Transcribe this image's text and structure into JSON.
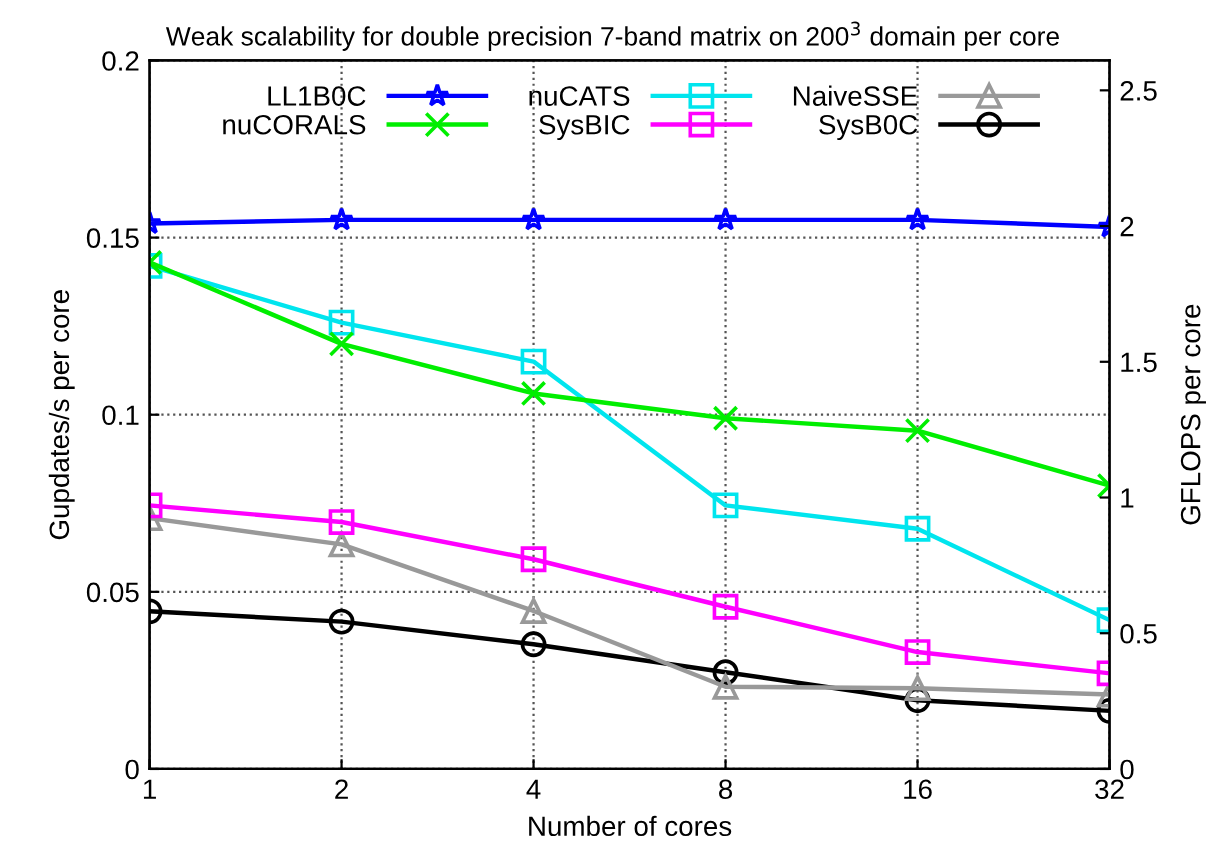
{
  "chart_data": {
    "type": "line",
    "title": "Weak scalability for double precision 7-band matrix on 200$^{3}$ domain per core",
    "xlabel": "Number of cores",
    "ylabel": "Gupdates/s per core",
    "y2label": "GFLOPS per core",
    "categories": [
      "1",
      "2",
      "4",
      "8",
      "16",
      "32"
    ],
    "series": [
      {
        "name": "LL1B0C",
        "color": "#0000ff",
        "marker": "star",
        "values": [
          0.154,
          0.155,
          0.155,
          0.155,
          0.155,
          0.153
        ]
      },
      {
        "name": "nuCORALS",
        "color": "#00ee00",
        "marker": "cross",
        "values": [
          0.143,
          0.12,
          0.106,
          0.099,
          0.0955,
          0.08
        ]
      },
      {
        "name": "nuCATS",
        "color": "#00e5ee",
        "marker": "square",
        "values": [
          0.142,
          0.126,
          0.115,
          0.0744,
          0.0678,
          0.042
        ]
      },
      {
        "name": "SysBIC",
        "color": "#ff00ff",
        "marker": "square",
        "values": [
          0.0744,
          0.0697,
          0.0592,
          0.0458,
          0.033,
          0.027
        ]
      },
      {
        "name": "NaiveSSE",
        "color": "#999999",
        "marker": "triangle",
        "values": [
          0.0708,
          0.0634,
          0.0446,
          0.0232,
          0.0228,
          0.021
        ]
      },
      {
        "name": "SysB0C",
        "color": "#000000",
        "marker": "circle",
        "values": [
          0.0445,
          0.0416,
          0.0352,
          0.0273,
          0.0194,
          0.0164
        ]
      }
    ],
    "ylim": [
      0,
      0.2
    ],
    "yticks": [
      0,
      0.05,
      0.1,
      0.15,
      0.2
    ],
    "y2lim": [
      0,
      2.61
    ],
    "y2ticks": [
      0,
      0.5,
      1,
      1.5,
      2,
      2.5
    ],
    "grid": true,
    "legend": "top",
    "line_style": "solid"
  }
}
